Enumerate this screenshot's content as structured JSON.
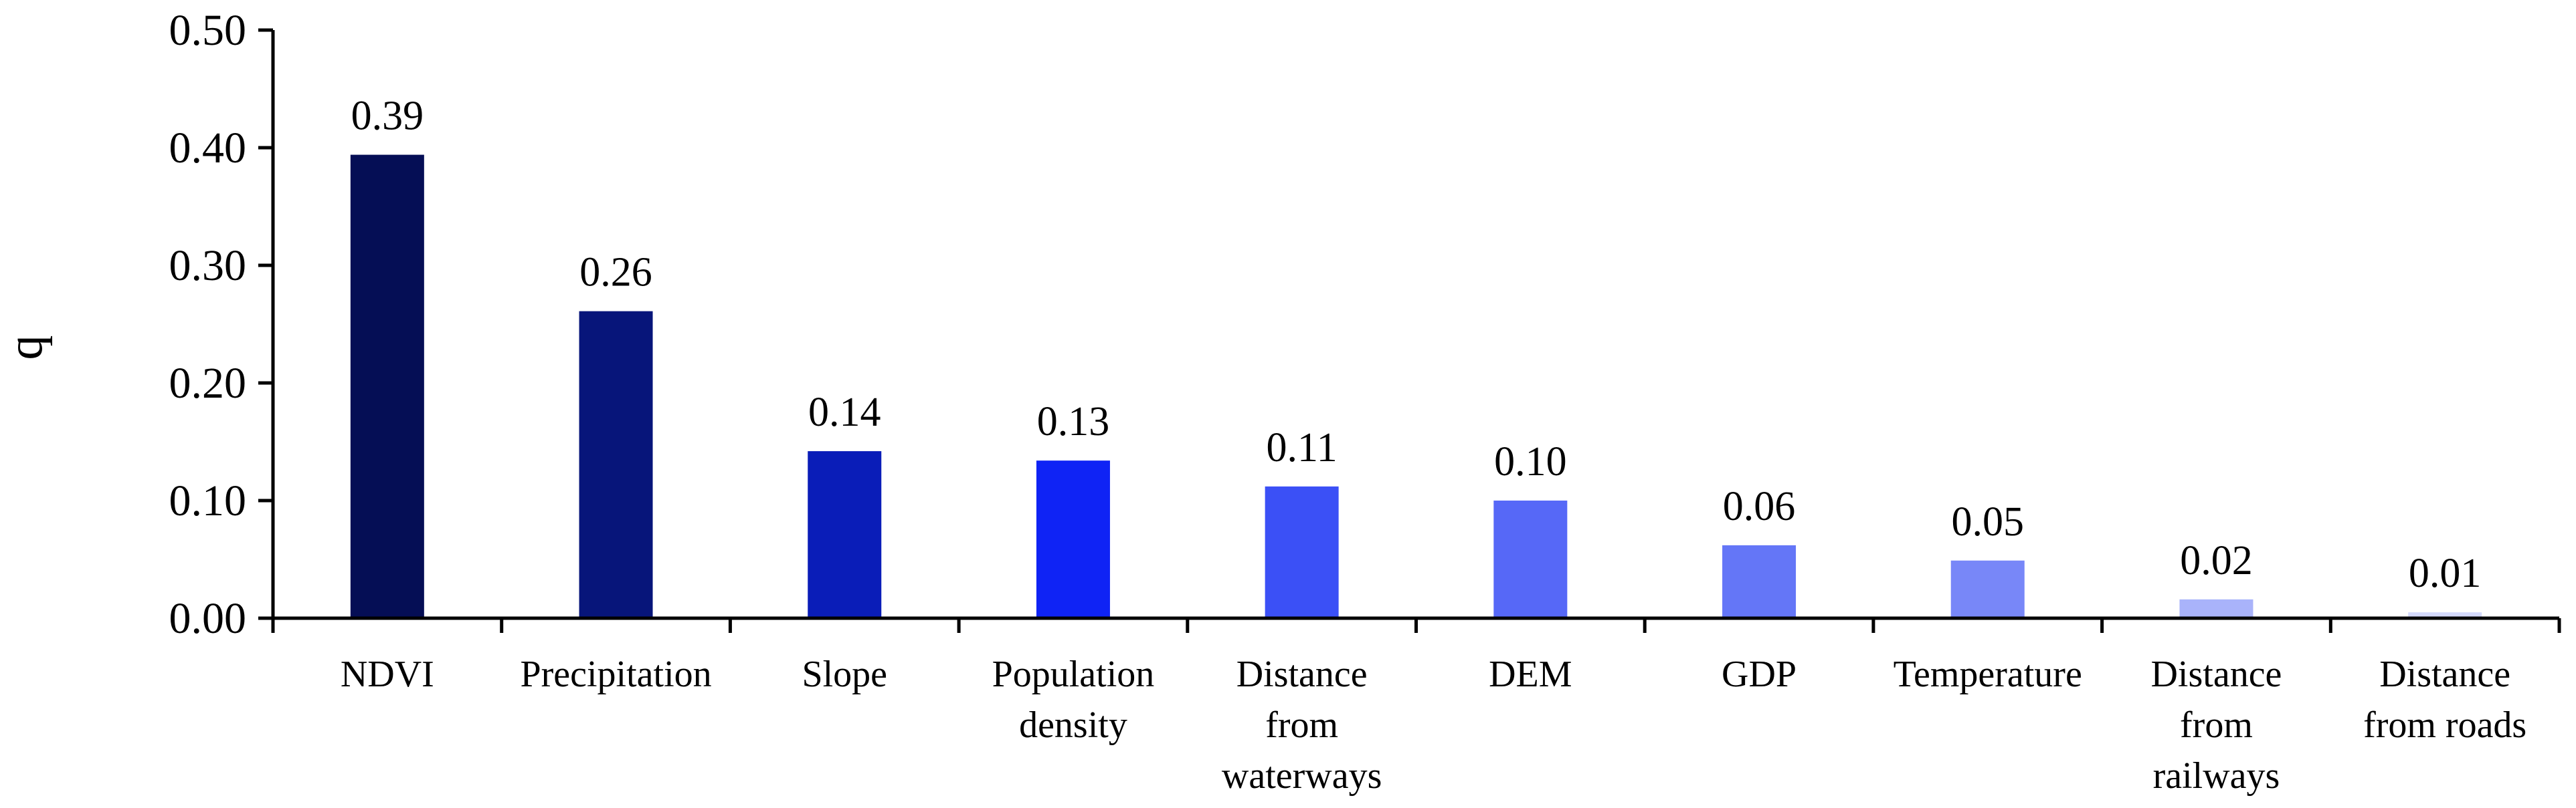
{
  "chart_data": {
    "type": "bar",
    "title": "",
    "xlabel": "",
    "ylabel": "q",
    "ylim": [
      0,
      0.5
    ],
    "yticks": [
      "0.00",
      "0.10",
      "0.20",
      "0.30",
      "0.40",
      "0.50"
    ],
    "grid": false,
    "categories": [
      [
        "NDVI"
      ],
      [
        "Precipitation"
      ],
      [
        "Slope"
      ],
      [
        "Population",
        "density"
      ],
      [
        "Distance",
        "from",
        "waterways"
      ],
      [
        "DEM"
      ],
      [
        "GDP"
      ],
      [
        "Temperature"
      ],
      [
        "Distance",
        "from",
        "railways"
      ],
      [
        "Distance",
        "from roads"
      ]
    ],
    "values": [
      0.394,
      0.261,
      0.142,
      0.134,
      0.112,
      0.1,
      0.062,
      0.049,
      0.016,
      0.005
    ],
    "data_labels": [
      "0.39",
      "0.26",
      "0.14",
      "0.13",
      "0.11",
      "0.10",
      "0.06",
      "0.05",
      "0.02",
      "0.01"
    ],
    "colors": [
      "#050e55",
      "#07157a",
      "#0a1db8",
      "#0f23f5",
      "#3b50f6",
      "#5668f7",
      "#6476f7",
      "#7887f8",
      "#a9b3fa",
      "#d4d9fc"
    ]
  }
}
